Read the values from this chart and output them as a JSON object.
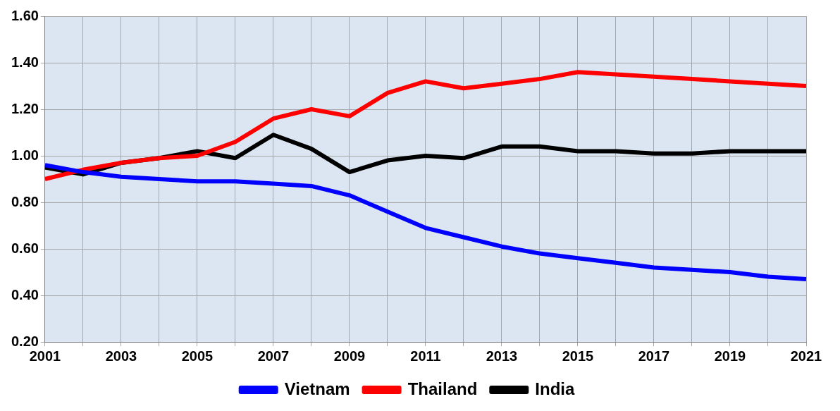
{
  "chart_data": {
    "type": "line",
    "categories": [
      "2001",
      null,
      "2003",
      null,
      "2005",
      null,
      "2007",
      null,
      "2009",
      null,
      "2011",
      null,
      "2013",
      null,
      "2015",
      null,
      "2017",
      null,
      "2019",
      null,
      "2021"
    ],
    "series": [
      {
        "name": "Vietnam",
        "color": "#0000ff",
        "values": [
          0.96,
          0.93,
          0.91,
          0.9,
          0.89,
          0.89,
          0.88,
          0.87,
          0.83,
          0.76,
          0.69,
          0.65,
          0.61,
          0.58,
          0.56,
          0.54,
          0.52,
          0.51,
          0.5,
          0.48,
          0.47
        ]
      },
      {
        "name": "Thailand",
        "color": "#ff0000",
        "values": [
          0.9,
          0.94,
          0.97,
          0.99,
          1.0,
          1.06,
          1.16,
          1.2,
          1.17,
          1.27,
          1.32,
          1.29,
          1.31,
          1.33,
          1.36,
          1.35,
          1.34,
          1.33,
          1.32,
          1.31,
          1.3
        ]
      },
      {
        "name": "India",
        "color": "#000000",
        "values": [
          0.95,
          0.92,
          0.97,
          0.99,
          1.02,
          0.99,
          1.09,
          1.03,
          0.93,
          0.98,
          1.0,
          0.99,
          1.04,
          1.04,
          1.02,
          1.02,
          1.01,
          1.01,
          1.02,
          1.02,
          1.02
        ]
      }
    ],
    "ylim": [
      0.2,
      1.6
    ],
    "yticks": [
      {
        "value": 0.2,
        "label": "0.20"
      },
      {
        "value": 0.4,
        "label": "0.40"
      },
      {
        "value": 0.6,
        "label": "0.60"
      },
      {
        "value": 0.8,
        "label": "0.80"
      },
      {
        "value": 1.0,
        "label": "1.00"
      },
      {
        "value": 1.2,
        "label": "1.20"
      },
      {
        "value": 1.4,
        "label": "1.40"
      },
      {
        "value": 1.6,
        "label": "1.60"
      }
    ],
    "grid": true,
    "legend": "bottom",
    "marker": "none",
    "line_style": "solid"
  }
}
